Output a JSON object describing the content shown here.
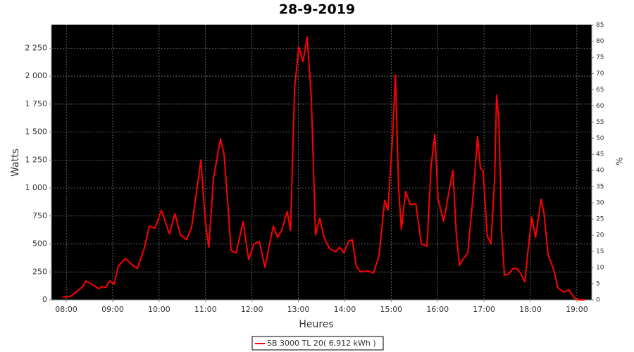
{
  "chart_data": {
    "type": "line",
    "title": "28-9-2019",
    "xlabel": "Heures",
    "ylabel": "Watts",
    "y2label": "%",
    "x": [
      7.92,
      8.09,
      8.24,
      8.36,
      8.42,
      8.55,
      8.7,
      8.77,
      8.85,
      8.93,
      9.03,
      9.12,
      9.27,
      9.43,
      9.53,
      9.68,
      9.79,
      9.91,
      10.05,
      10.22,
      10.34,
      10.46,
      10.59,
      10.7,
      10.9,
      11.0,
      11.07,
      11.17,
      11.32,
      11.4,
      11.49,
      11.55,
      11.66,
      11.81,
      11.93,
      12.04,
      12.16,
      12.28,
      12.37,
      12.46,
      12.55,
      12.64,
      12.76,
      12.83,
      12.92,
      13.01,
      13.1,
      13.19,
      13.28,
      13.37,
      13.46,
      13.55,
      13.67,
      13.8,
      13.89,
      13.98,
      14.08,
      14.16,
      14.25,
      14.34,
      14.49,
      14.62,
      14.74,
      14.86,
      14.93,
      15.03,
      15.09,
      15.16,
      15.22,
      15.31,
      15.41,
      15.53,
      15.65,
      15.77,
      15.86,
      15.94,
      16.01,
      16.13,
      16.25,
      16.33,
      16.4,
      16.47,
      16.56,
      16.65,
      16.77,
      16.86,
      16.92,
      16.98,
      17.07,
      17.15,
      17.23,
      17.27,
      17.32,
      17.38,
      17.44,
      17.53,
      17.62,
      17.71,
      17.8,
      17.88,
      17.95,
      18.03,
      18.11,
      18.23,
      18.29,
      18.38,
      18.5,
      18.59,
      18.71,
      18.83,
      18.94,
      19.04,
      19.17
    ],
    "series": [
      {
        "name": "SB 3000 TL 20( 6,912 kWh )",
        "color": "#ff0000",
        "values": [
          25,
          30,
          80,
          120,
          170,
          140,
          100,
          120,
          110,
          170,
          140,
          300,
          370,
          310,
          280,
          460,
          660,
          640,
          800,
          590,
          770,
          580,
          540,
          650,
          1250,
          680,
          470,
          1080,
          1440,
          1300,
          800,
          440,
          420,
          700,
          360,
          500,
          520,
          290,
          480,
          660,
          560,
          620,
          790,
          620,
          1900,
          2260,
          2130,
          2350,
          1800,
          580,
          730,
          560,
          460,
          430,
          470,
          420,
          520,
          540,
          300,
          250,
          260,
          240,
          400,
          890,
          800,
          1450,
          2010,
          1000,
          630,
          970,
          850,
          860,
          500,
          480,
          1200,
          1480,
          900,
          700,
          980,
          1160,
          600,
          310,
          370,
          420,
          960,
          1460,
          1180,
          1150,
          570,
          500,
          1100,
          1830,
          1600,
          600,
          220,
          230,
          280,
          280,
          230,
          160,
          450,
          740,
          560,
          900,
          780,
          400,
          270,
          110,
          70,
          90,
          20,
          0,
          0
        ]
      }
    ],
    "xlim": [
      7.68,
      19.32
    ],
    "xticks": [
      {
        "value": 8,
        "label": "08:00"
      },
      {
        "value": 9,
        "label": "09:00"
      },
      {
        "value": 10,
        "label": "10:00"
      },
      {
        "value": 11,
        "label": "11:00"
      },
      {
        "value": 12,
        "label": "12:00"
      },
      {
        "value": 13,
        "label": "13:00"
      },
      {
        "value": 14,
        "label": "14:00"
      },
      {
        "value": 15,
        "label": "15:00"
      },
      {
        "value": 16,
        "label": "16:00"
      },
      {
        "value": 17,
        "label": "17:00"
      },
      {
        "value": 18,
        "label": "18:00"
      },
      {
        "value": 19,
        "label": "19:00"
      }
    ],
    "ylim": [
      0,
      2460
    ],
    "yticks": [
      0,
      250,
      500,
      750,
      {
        "value": 1000,
        "label": "1 000"
      },
      {
        "value": 1250,
        "label": "1 250"
      },
      {
        "value": 1500,
        "label": "1 500"
      },
      {
        "value": 1750,
        "label": "1 750"
      },
      {
        "value": 2000,
        "label": "2 000"
      },
      {
        "value": 2250,
        "label": "2 250"
      }
    ],
    "y2lim": [
      0,
      85.1
    ],
    "y2ticks": [
      0,
      5,
      10,
      15,
      20,
      25,
      30,
      35,
      40,
      45,
      50,
      55,
      60,
      65,
      70,
      75,
      80,
      85
    ],
    "grid": true
  }
}
